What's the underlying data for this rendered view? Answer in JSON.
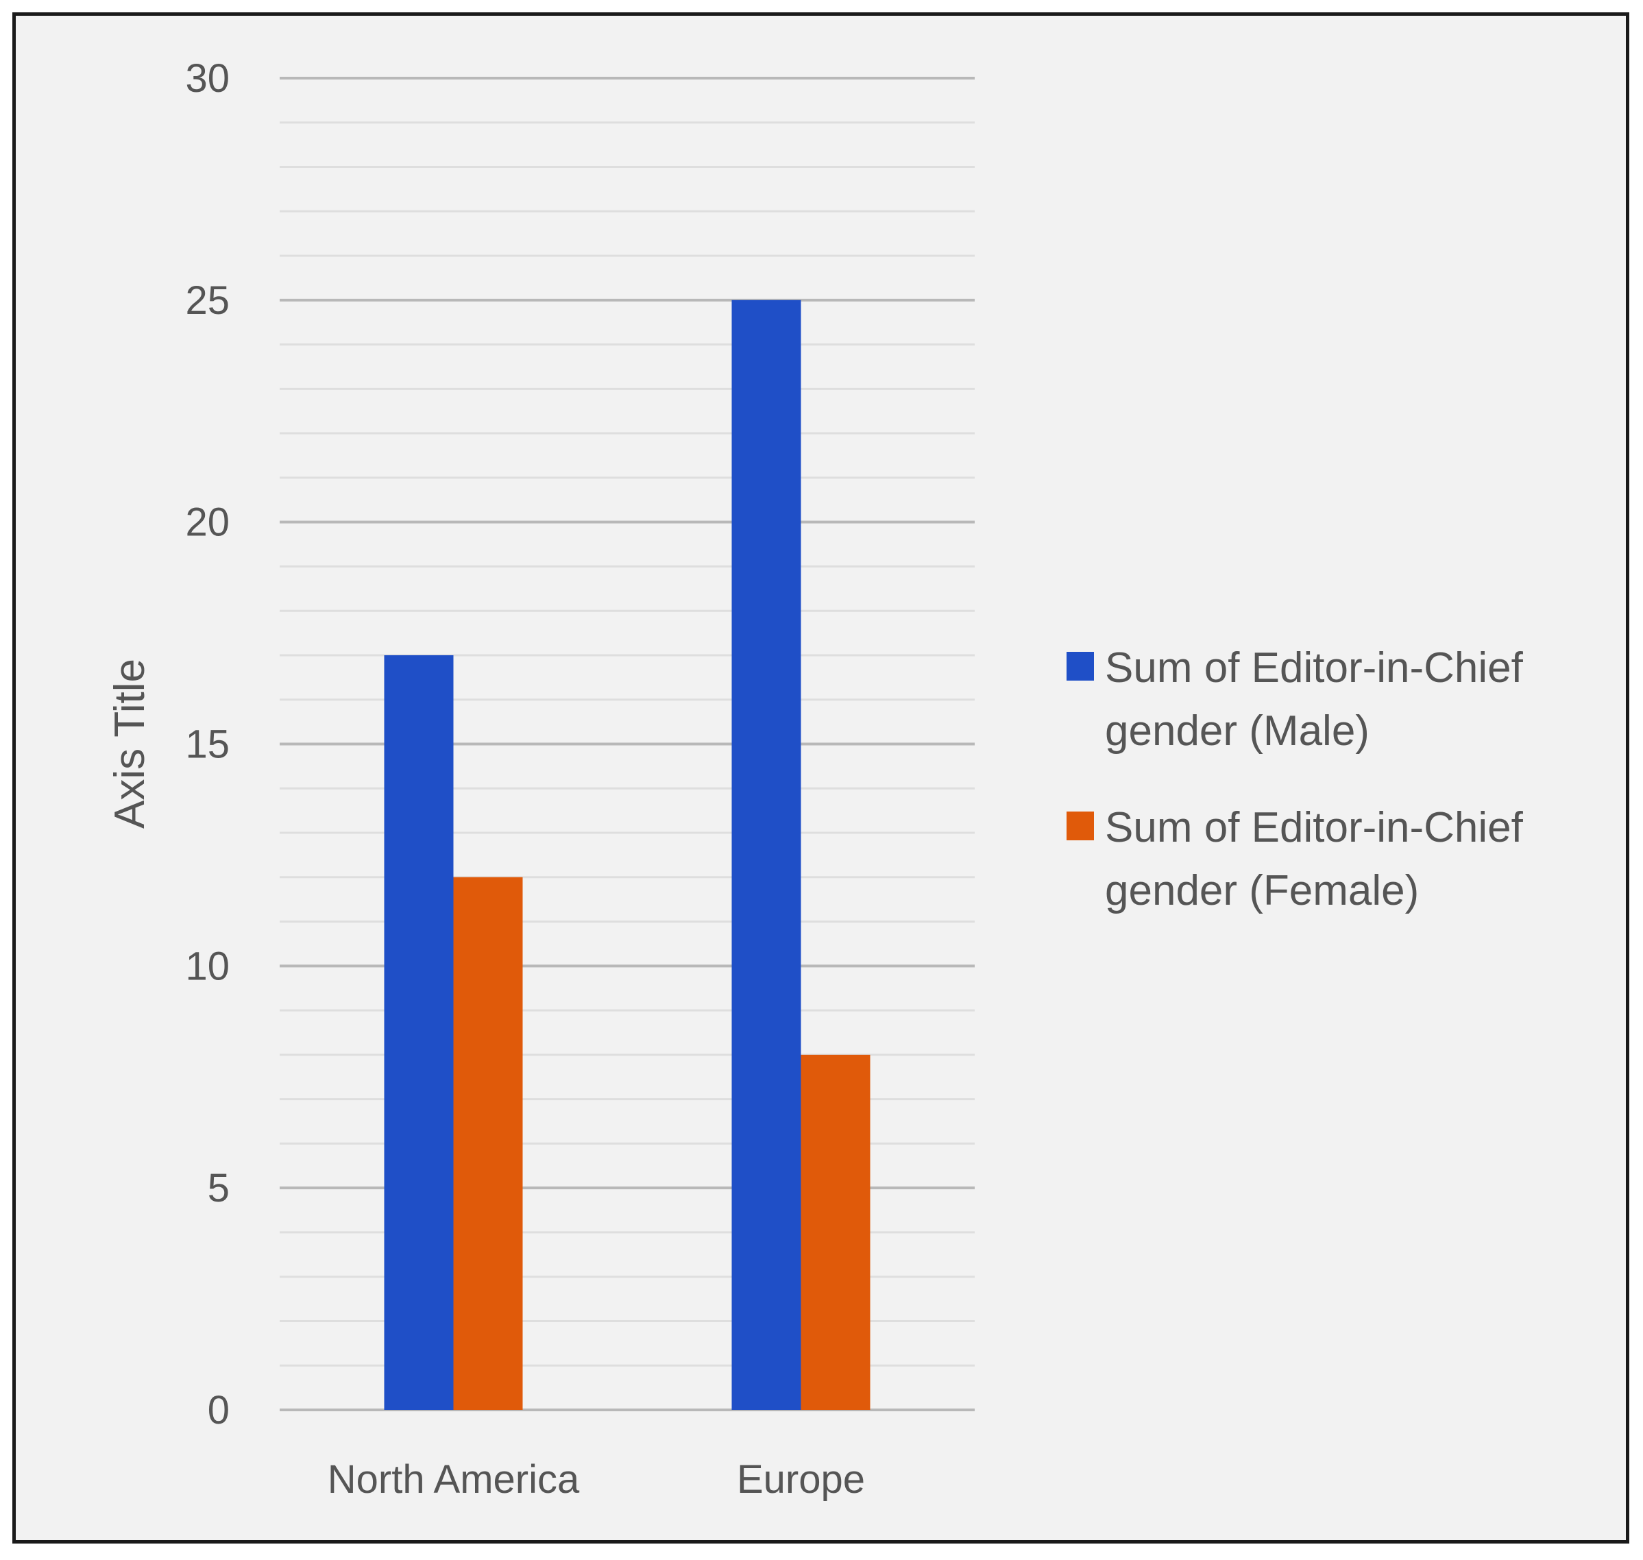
{
  "chart_data": {
    "type": "bar",
    "categories": [
      "North America",
      "Europe"
    ],
    "series": [
      {
        "name": "Sum of Editor-in-Chief gender (Male)",
        "legend_lines": [
          "Sum of Editor-in-Chief",
          "gender (Male)"
        ],
        "values": [
          17,
          25
        ],
        "color": "#1f4fc7"
      },
      {
        "name": "Sum of Editor-in-Chief gender (Female)",
        "legend_lines": [
          "Sum of Editor-in-Chief",
          "gender (Female)"
        ],
        "values": [
          12,
          8
        ],
        "color": "#e05a0a"
      }
    ],
    "title": "",
    "xlabel": "",
    "ylabel": "Axis Title",
    "ylim": [
      0,
      30
    ],
    "yticks": [
      0,
      5,
      10,
      15,
      20,
      25,
      30
    ],
    "grid": true,
    "legend_position": "right"
  }
}
